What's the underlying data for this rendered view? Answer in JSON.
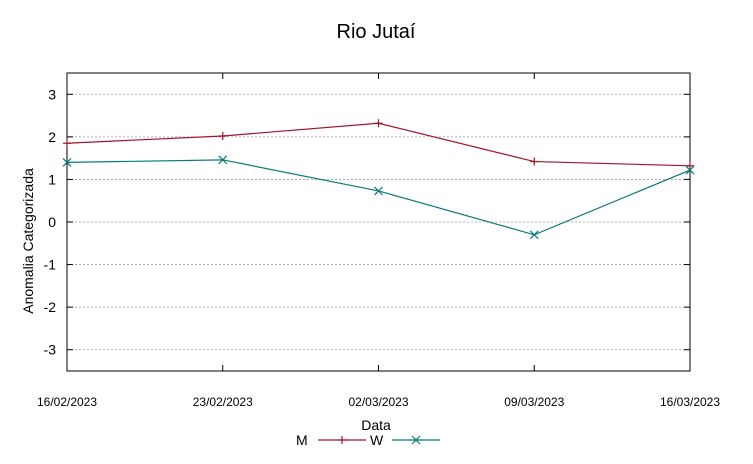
{
  "chart_data": {
    "type": "line",
    "title": "Rio Jutaí",
    "xlabel": "Data",
    "ylabel": "Anomalia Categorizada",
    "categories": [
      "16/02/2023",
      "23/02/2023",
      "02/03/2023",
      "09/03/2023",
      "16/03/2023"
    ],
    "ylim": [
      -3.5,
      3.5
    ],
    "yticks": [
      "3",
      "2",
      "1",
      "0",
      "-1",
      "-2",
      "-3"
    ],
    "ytick_values": [
      3,
      2,
      1,
      0,
      -1,
      -2,
      -3
    ],
    "grid": true,
    "legend_position": "bottom",
    "series": [
      {
        "name": "M",
        "color": "#a0142a",
        "marker": "plus",
        "values": [
          1.85,
          2.02,
          2.32,
          1.42,
          1.32
        ]
      },
      {
        "name": "W",
        "color": "#0b7a7a",
        "marker": "x",
        "values": [
          1.4,
          1.46,
          0.73,
          -0.3,
          1.22
        ]
      }
    ]
  }
}
